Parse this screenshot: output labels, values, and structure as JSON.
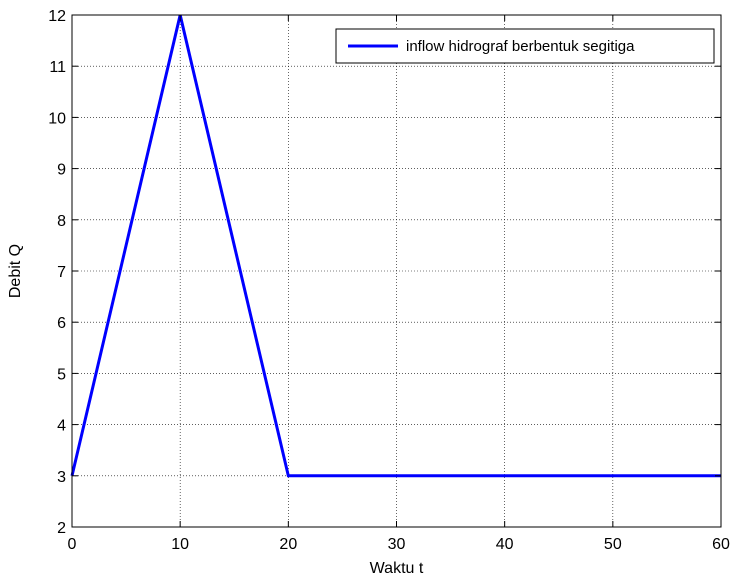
{
  "chart_data": {
    "type": "line",
    "title": "",
    "xlabel": "Waktu t",
    "ylabel": "Debit Q",
    "xlim": [
      0,
      60
    ],
    "ylim": [
      2,
      12
    ],
    "xticks": [
      0,
      10,
      20,
      30,
      40,
      50,
      60
    ],
    "yticks": [
      2,
      3,
      4,
      5,
      6,
      7,
      8,
      9,
      10,
      11,
      12
    ],
    "grid": true,
    "legend_position": "top-right",
    "series": [
      {
        "name": "inflow hidrograf berbentuk segitiga",
        "color": "#0000ff",
        "x": [
          0,
          10,
          20,
          60
        ],
        "y": [
          3,
          12,
          3,
          3
        ]
      }
    ]
  }
}
